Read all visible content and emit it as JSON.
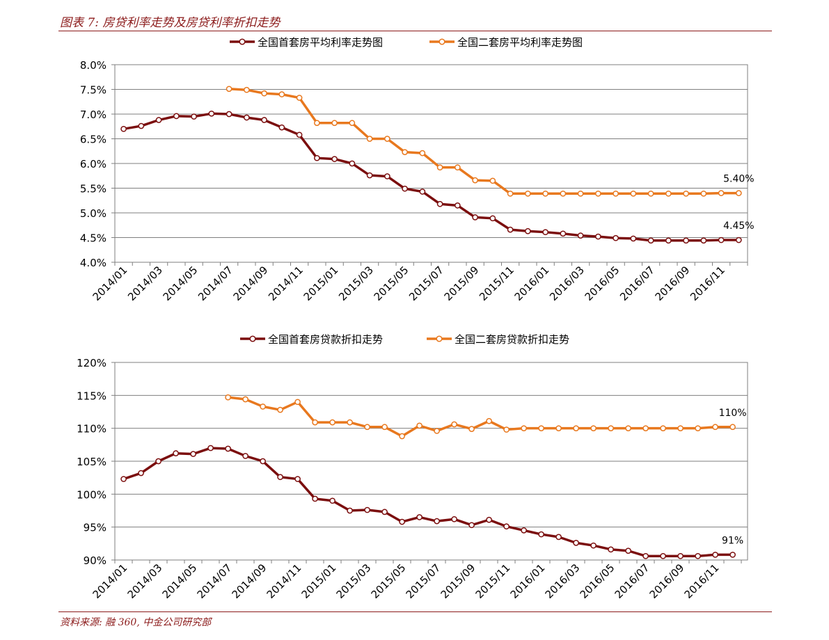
{
  "header": {
    "title": "图表 7:  房贷利率走势及房贷利率折扣走势",
    "source": "资料来源: 融 360, 中金公司研究部"
  },
  "colors": {
    "first": "#7b0e0e",
    "second": "#e8781e",
    "brand": "#8b1a1a",
    "grid": "#7f7f7f"
  },
  "chart_data": [
    {
      "type": "line",
      "title": "",
      "x_tick_labels": [
        "2014/01",
        "2014/03",
        "2014/05",
        "2014/07",
        "2014/09",
        "2014/11",
        "2015/01",
        "2015/03",
        "2015/05",
        "2015/07",
        "2015/09",
        "2015/11",
        "2016/01",
        "2016/03",
        "2016/05",
        "2016/07",
        "2016/09",
        "2016/11"
      ],
      "y_tick_labels": [
        "4.0%",
        "4.5%",
        "5.0%",
        "5.5%",
        "6.0%",
        "6.5%",
        "7.0%",
        "7.5%",
        "8.0%"
      ],
      "ylim": [
        4.0,
        8.0
      ],
      "grid": true,
      "legend_position": "top",
      "x": [
        "2014/01",
        "2014/02",
        "2014/03",
        "2014/04",
        "2014/05",
        "2014/06",
        "2014/07",
        "2014/08",
        "2014/09",
        "2014/10",
        "2014/11",
        "2014/12",
        "2015/01",
        "2015/02",
        "2015/03",
        "2015/04",
        "2015/05",
        "2015/06",
        "2015/07",
        "2015/08",
        "2015/09",
        "2015/10",
        "2015/11",
        "2015/12",
        "2016/01",
        "2016/02",
        "2016/03",
        "2016/04",
        "2016/05",
        "2016/06",
        "2016/07",
        "2016/08",
        "2016/09",
        "2016/10",
        "2016/11",
        "2016/12"
      ],
      "series": [
        {
          "name": "全国首套房平均利率走势图",
          "color": "#7b0e0e",
          "values": [
            6.7,
            6.76,
            6.88,
            6.96,
            6.95,
            7.01,
            7.0,
            6.93,
            6.88,
            6.73,
            6.58,
            6.11,
            6.09,
            6.0,
            5.76,
            5.74,
            5.49,
            5.43,
            5.18,
            5.15,
            4.91,
            4.89,
            4.66,
            4.63,
            4.61,
            4.58,
            4.54,
            4.52,
            4.49,
            4.48,
            4.44,
            4.44,
            4.44,
            4.44,
            4.45,
            4.45
          ]
        },
        {
          "name": "全国二套房平均利率走势图",
          "color": "#e8781e",
          "values": [
            null,
            null,
            null,
            null,
            null,
            null,
            7.51,
            7.49,
            7.42,
            7.4,
            7.33,
            6.82,
            6.82,
            6.82,
            6.5,
            6.5,
            6.23,
            6.21,
            5.92,
            5.92,
            5.66,
            5.65,
            5.39,
            5.39,
            5.39,
            5.39,
            5.39,
            5.39,
            5.39,
            5.39,
            5.39,
            5.39,
            5.39,
            5.39,
            5.4,
            5.4
          ]
        }
      ],
      "annotations": [
        "5.40%",
        "4.45%"
      ]
    },
    {
      "type": "line",
      "title": "",
      "x_tick_labels": [
        "2014/01",
        "2014/03",
        "2014/05",
        "2014/07",
        "2014/09",
        "2014/11",
        "2015/01",
        "2015/03",
        "2015/05",
        "2015/07",
        "2015/09",
        "2015/11",
        "2016/01",
        "2016/03",
        "2016/05",
        "2016/07",
        "2016/09",
        "2016/11"
      ],
      "y_tick_labels": [
        "90%",
        "95%",
        "100%",
        "105%",
        "110%",
        "115%",
        "120%"
      ],
      "ylim": [
        90,
        120
      ],
      "grid": true,
      "legend_position": "top",
      "x": [
        "2014/01",
        "2014/02",
        "2014/03",
        "2014/04",
        "2014/05",
        "2014/06",
        "2014/07",
        "2014/08",
        "2014/09",
        "2014/10",
        "2014/11",
        "2014/12",
        "2015/01",
        "2015/02",
        "2015/03",
        "2015/04",
        "2015/05",
        "2015/06",
        "2015/07",
        "2015/08",
        "2015/09",
        "2015/10",
        "2015/11",
        "2015/12",
        "2016/01",
        "2016/02",
        "2016/03",
        "2016/04",
        "2016/05",
        "2016/06",
        "2016/07",
        "2016/08",
        "2016/09",
        "2016/10",
        "2016/11",
        "2016/12"
      ],
      "series": [
        {
          "name": "全国首套房贷款折扣走势",
          "color": "#7b0e0e",
          "values": [
            102.3,
            103.2,
            105.0,
            106.2,
            106.1,
            107.0,
            106.9,
            105.8,
            105.0,
            102.6,
            102.3,
            99.3,
            99.0,
            97.5,
            97.6,
            97.3,
            95.8,
            96.5,
            95.9,
            96.2,
            95.3,
            96.1,
            95.1,
            94.5,
            93.9,
            93.5,
            92.6,
            92.2,
            91.6,
            91.4,
            90.6,
            90.6,
            90.6,
            90.6,
            90.8,
            90.8
          ]
        },
        {
          "name": "全国二套房贷款折扣走势",
          "color": "#e8781e",
          "values": [
            null,
            null,
            null,
            null,
            null,
            null,
            114.7,
            114.4,
            113.3,
            112.8,
            114.0,
            110.9,
            110.9,
            110.9,
            110.2,
            110.2,
            108.8,
            110.4,
            109.6,
            110.6,
            109.9,
            111.1,
            109.8,
            110.0,
            110.0,
            110.0,
            110.0,
            110.0,
            110.0,
            110.0,
            110.0,
            110.0,
            110.0,
            110.0,
            110.2,
            110.2
          ]
        }
      ],
      "annotations": [
        "110%",
        "91%"
      ]
    }
  ]
}
